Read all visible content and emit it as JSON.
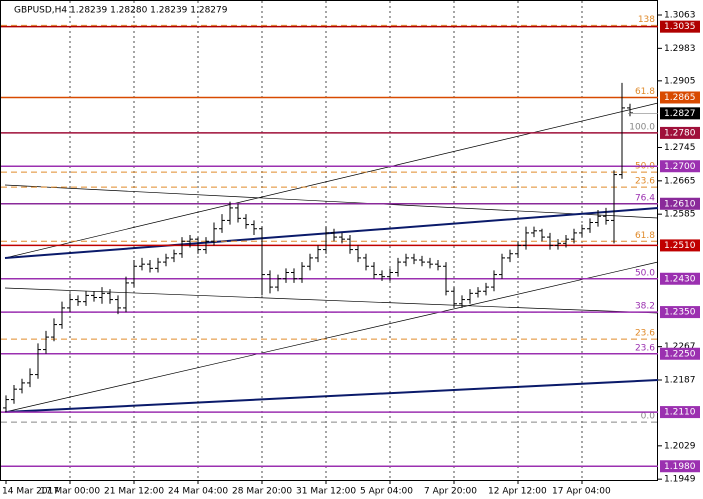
{
  "chart_data": {
    "type": "ohlc",
    "title": "GBPUSD,H4  1.28239 1.28280 1.28239 1.28279",
    "color": "#000000",
    "categories": [
      "14 Mar 2017",
      null,
      null,
      null,
      null,
      null,
      null,
      null,
      "17 Mar 00:00",
      null,
      null,
      null,
      null,
      null,
      null,
      null,
      "21 Mar 12:00",
      null,
      null,
      null,
      null,
      null,
      null,
      null,
      "24 Mar 04:00",
      null,
      null,
      null,
      null,
      null,
      null,
      null,
      "28 Mar 20:00",
      null,
      null,
      null,
      null,
      null,
      null,
      null,
      "31 Mar 12:00",
      null,
      null,
      null,
      null,
      null,
      null,
      null,
      "5 Apr 04:00",
      null,
      null,
      null,
      null,
      null,
      null,
      null,
      "7 Apr 20:00",
      null,
      null,
      null,
      null,
      null,
      null,
      null,
      "12 Apr 12:00",
      null,
      null,
      null,
      null,
      null,
      null,
      null,
      "17 Apr 04:00",
      null,
      null,
      null,
      null,
      null,
      null
    ],
    "open": [
      1.212,
      1.214,
      1.2165,
      1.218,
      1.22,
      1.226,
      1.229,
      1.232,
      1.236,
      1.238,
      1.2375,
      1.239,
      1.2385,
      1.2395,
      1.238,
      1.236,
      1.242,
      1.246,
      1.2465,
      1.2455,
      1.247,
      1.248,
      1.249,
      1.252,
      1.2525,
      1.25,
      1.252,
      1.255,
      1.257,
      1.26,
      1.2575,
      1.256,
      1.255,
      1.244,
      1.241,
      1.243,
      1.2445,
      1.243,
      1.246,
      1.248,
      1.25,
      1.254,
      1.253,
      1.2525,
      1.25,
      1.248,
      1.246,
      1.244,
      1.2435,
      1.2445,
      1.247,
      1.248,
      1.2475,
      1.247,
      1.2465,
      1.246,
      1.24,
      1.237,
      1.238,
      1.2395,
      1.24,
      1.241,
      1.244,
      1.248,
      1.249,
      1.251,
      1.254,
      1.2545,
      1.253,
      1.251,
      1.2515,
      1.2525,
      1.254,
      1.255,
      1.2565,
      1.258,
      1.257,
      1.268,
      1.284
    ],
    "high": [
      1.215,
      1.2175,
      1.219,
      1.2215,
      1.2275,
      1.2305,
      1.2335,
      1.2375,
      1.2395,
      1.239,
      1.24,
      1.24,
      1.241,
      1.2405,
      1.239,
      1.2435,
      1.2475,
      1.248,
      1.2475,
      1.248,
      1.249,
      1.25,
      1.253,
      1.2535,
      1.253,
      1.253,
      1.2565,
      1.2585,
      1.2615,
      1.261,
      1.2585,
      1.257,
      1.2555,
      1.245,
      1.244,
      1.2455,
      1.2455,
      1.247,
      1.249,
      1.251,
      1.2555,
      1.255,
      1.254,
      1.2535,
      1.251,
      1.249,
      1.247,
      1.245,
      1.2455,
      1.248,
      1.249,
      1.249,
      1.2485,
      1.248,
      1.2475,
      1.247,
      1.241,
      1.239,
      1.2405,
      1.241,
      1.242,
      1.245,
      1.249,
      1.25,
      1.252,
      1.2555,
      1.2555,
      1.255,
      1.254,
      1.2525,
      1.2535,
      1.255,
      1.256,
      1.2575,
      1.2595,
      1.26,
      1.269,
      1.29,
      1.285
    ],
    "low": [
      1.211,
      1.213,
      1.2155,
      1.217,
      1.219,
      1.225,
      1.228,
      1.231,
      1.235,
      1.2365,
      1.2365,
      1.2375,
      1.237,
      1.237,
      1.2345,
      1.235,
      1.241,
      1.245,
      1.2445,
      1.2445,
      1.246,
      1.247,
      1.248,
      1.2505,
      1.249,
      1.249,
      1.251,
      1.254,
      1.256,
      1.2565,
      1.255,
      1.2535,
      1.239,
      1.2395,
      1.24,
      1.242,
      1.242,
      1.242,
      1.245,
      1.247,
      1.249,
      1.252,
      1.2515,
      1.249,
      1.247,
      1.245,
      1.243,
      1.2425,
      1.2425,
      1.2435,
      1.246,
      1.2465,
      1.246,
      1.2455,
      1.245,
      1.239,
      1.236,
      1.236,
      1.237,
      1.2385,
      1.239,
      1.24,
      1.243,
      1.247,
      1.248,
      1.25,
      1.253,
      1.252,
      1.25,
      1.25,
      1.2505,
      1.2515,
      1.253,
      1.254,
      1.2555,
      1.256,
      1.2515,
      1.267,
      1.282
    ],
    "close": [
      1.214,
      1.2165,
      1.218,
      1.22,
      1.226,
      1.229,
      1.232,
      1.236,
      1.238,
      1.2375,
      1.239,
      1.2385,
      1.2395,
      1.238,
      1.236,
      1.242,
      1.246,
      1.2465,
      1.2455,
      1.247,
      1.248,
      1.249,
      1.252,
      1.2525,
      1.25,
      1.252,
      1.255,
      1.257,
      1.26,
      1.2575,
      1.256,
      1.255,
      1.244,
      1.241,
      1.243,
      1.2445,
      1.243,
      1.246,
      1.248,
      1.25,
      1.254,
      1.253,
      1.2525,
      1.25,
      1.248,
      1.246,
      1.244,
      1.2435,
      1.2445,
      1.247,
      1.248,
      1.2475,
      1.247,
      1.2465,
      1.246,
      1.24,
      1.237,
      1.238,
      1.2395,
      1.24,
      1.241,
      1.244,
      1.248,
      1.249,
      1.251,
      1.254,
      1.2545,
      1.253,
      1.251,
      1.2515,
      1.2525,
      1.254,
      1.255,
      1.2565,
      1.258,
      1.257,
      1.268,
      1.284,
      1.2828
    ],
    "ylim": [
      1.1947,
      1.3099
    ],
    "yticks": [
      1.3063,
      1.2983,
      1.2905,
      1.2745,
      1.2665,
      1.2585,
      1.2267,
      1.2187,
      1.2029,
      1.1949
    ],
    "levels": [
      {
        "value": 1.3035,
        "label": "1.3035",
        "color": "#b00000"
      },
      {
        "value": 1.2865,
        "label": "1.2865",
        "color": "#d84a00"
      },
      {
        "value": 1.278,
        "label": "1.2780",
        "color": "#a0103a"
      },
      {
        "value": 1.27,
        "label": "1.2700",
        "color": "#9b30b0"
      },
      {
        "value": 1.261,
        "label": "1.2610",
        "color": "#8a2a9a"
      },
      {
        "value": 1.251,
        "label": "1.2510",
        "color": "#c00000"
      },
      {
        "value": 1.243,
        "label": "1.2430",
        "color": "#9b30b0"
      },
      {
        "value": 1.235,
        "label": "1.2350",
        "color": "#9b30b0"
      },
      {
        "value": 1.225,
        "label": "1.2250",
        "color": "#9b30b0"
      },
      {
        "value": 1.211,
        "label": "1.2110",
        "color": "#9b30b0"
      },
      {
        "value": 1.198,
        "label": "1.1980",
        "color": "#9b30b0"
      }
    ],
    "current_price": {
      "value": 1.2827,
      "label": "1.2827"
    },
    "fib_levels": [
      {
        "value": 1.3038,
        "label": "138",
        "color": "#e08a2a"
      },
      {
        "value": 1.2865,
        "label": "61.8",
        "color": "#e08a2a"
      },
      {
        "value": 1.278,
        "label": "100.0",
        "color": "#888888"
      },
      {
        "value": 1.2686,
        "label": "50.0",
        "color": "#e08a2a"
      },
      {
        "value": 1.265,
        "label": "23.6",
        "color": "#e08a2a"
      },
      {
        "value": 1.261,
        "label": "76.4",
        "color": "#9b30b0"
      },
      {
        "value": 1.252,
        "label": "61.8",
        "color": "#e08a2a"
      },
      {
        "value": 1.243,
        "label": "50.0",
        "color": "#9b30b0"
      },
      {
        "value": 1.235,
        "label": "38.2",
        "color": "#9b30b0"
      },
      {
        "value": 1.2285,
        "label": "23.6",
        "color": "#e08a2a"
      },
      {
        "value": 1.225,
        "label": "23.6",
        "color": "#9b30b0"
      },
      {
        "value": 1.2086,
        "label": "0.0",
        "color": "#888888"
      }
    ],
    "grid": true
  }
}
